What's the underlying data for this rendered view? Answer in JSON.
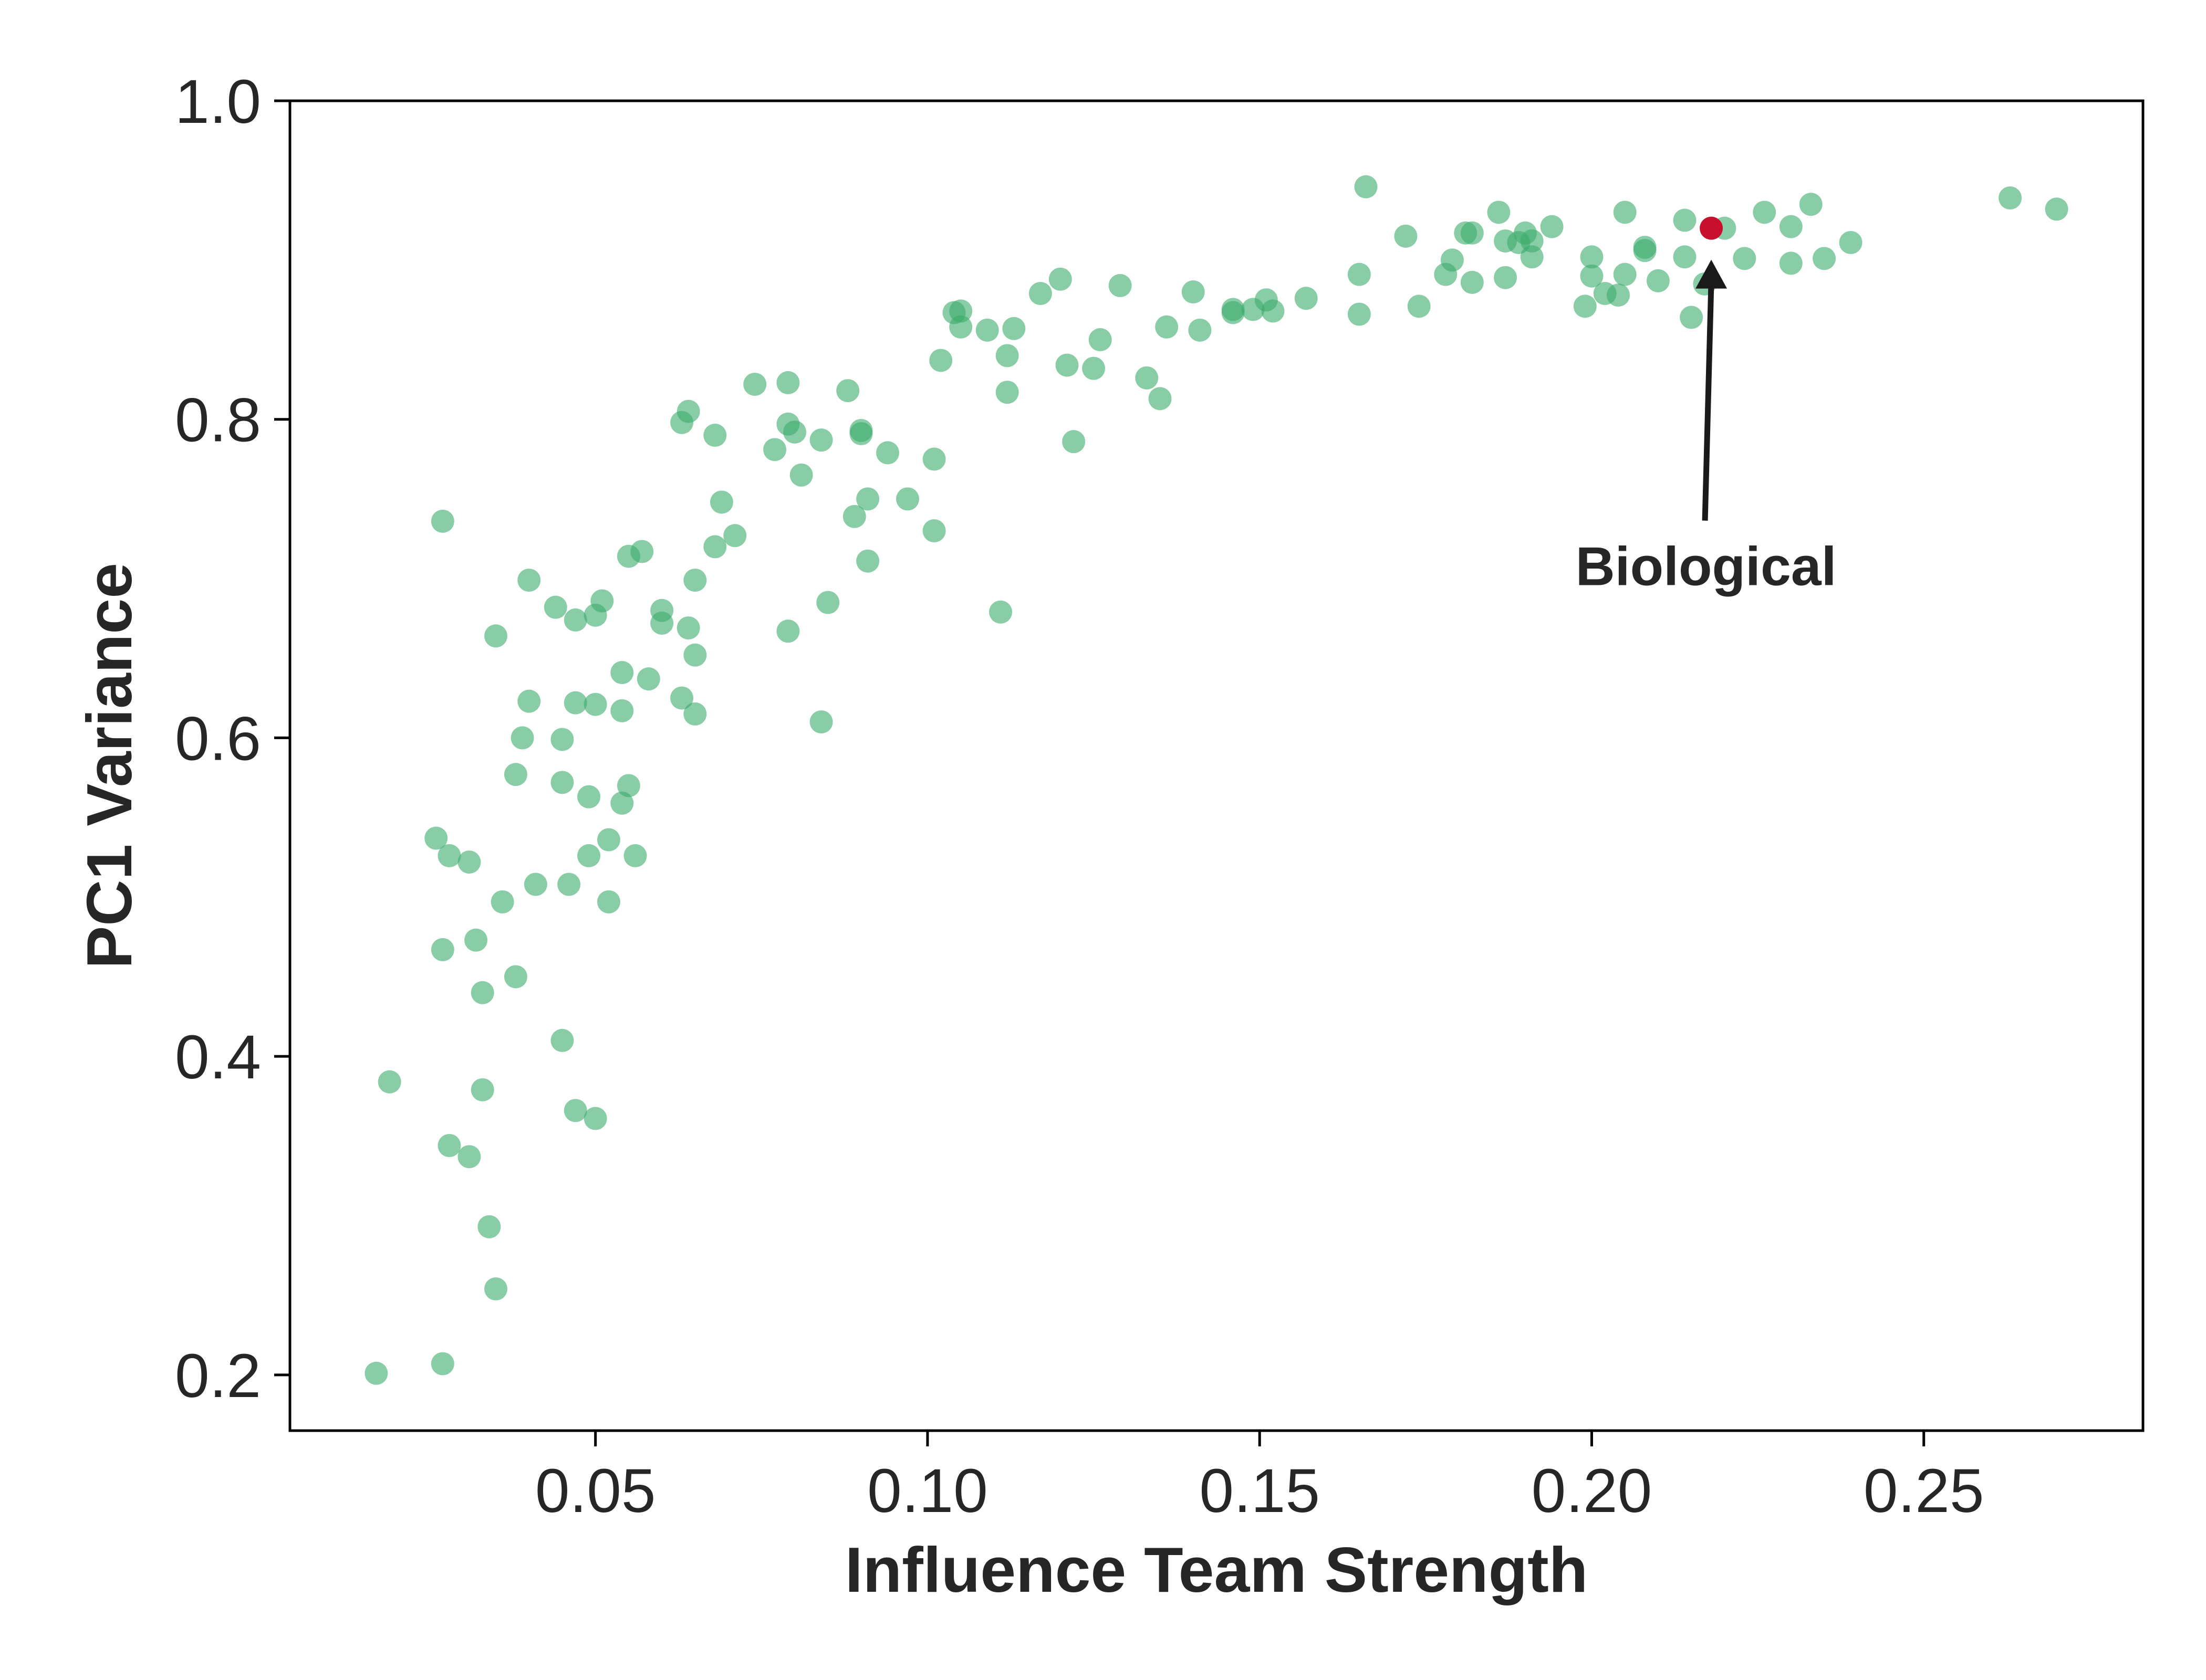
{
  "chart_data": {
    "type": "scatter",
    "title": "",
    "xlabel": "Influence Team Strength",
    "ylabel": "PC1 Variance",
    "xlim": [
      0.004,
      0.283
    ],
    "ylim": [
      0.165,
      1.0
    ],
    "xticks": [
      0.05,
      0.1,
      0.15,
      0.2,
      0.25
    ],
    "xtick_labels": [
      "0.05",
      "0.10",
      "0.15",
      "0.20",
      "0.25"
    ],
    "yticks": [
      0.2,
      0.4,
      0.6,
      0.8,
      1.0
    ],
    "ytick_labels": [
      "0.2",
      "0.4",
      "0.6",
      "0.8",
      "1.0"
    ],
    "grid": false,
    "colors": {
      "points": "#3aab6a",
      "highlight": "#c8102e",
      "axis": "#000000",
      "text": "#262626"
    },
    "series": [
      {
        "points": [
          [
            0.017,
            0.201
          ],
          [
            0.019,
            0.384
          ],
          [
            0.027,
            0.207
          ],
          [
            0.027,
            0.736
          ],
          [
            0.026,
            0.537
          ],
          [
            0.028,
            0.526
          ],
          [
            0.027,
            0.467
          ],
          [
            0.031,
            0.522
          ],
          [
            0.032,
            0.473
          ],
          [
            0.033,
            0.44
          ],
          [
            0.033,
            0.379
          ],
          [
            0.028,
            0.344
          ],
          [
            0.031,
            0.337
          ],
          [
            0.034,
            0.293
          ],
          [
            0.035,
            0.254
          ],
          [
            0.035,
            0.664
          ],
          [
            0.036,
            0.497
          ],
          [
            0.038,
            0.577
          ],
          [
            0.039,
            0.6
          ],
          [
            0.04,
            0.699
          ],
          [
            0.04,
            0.623
          ],
          [
            0.038,
            0.45
          ],
          [
            0.041,
            0.508
          ],
          [
            0.044,
            0.682
          ],
          [
            0.045,
            0.599
          ],
          [
            0.045,
            0.572
          ],
          [
            0.045,
            0.41
          ],
          [
            0.046,
            0.508
          ],
          [
            0.047,
            0.674
          ],
          [
            0.047,
            0.622
          ],
          [
            0.047,
            0.366
          ],
          [
            0.049,
            0.563
          ],
          [
            0.049,
            0.526
          ],
          [
            0.05,
            0.677
          ],
          [
            0.05,
            0.621
          ],
          [
            0.05,
            0.361
          ],
          [
            0.051,
            0.686
          ],
          [
            0.052,
            0.536
          ],
          [
            0.052,
            0.497
          ],
          [
            0.054,
            0.641
          ],
          [
            0.054,
            0.617
          ],
          [
            0.054,
            0.559
          ],
          [
            0.055,
            0.714
          ],
          [
            0.055,
            0.57
          ],
          [
            0.056,
            0.526
          ],
          [
            0.057,
            0.717
          ],
          [
            0.058,
            0.637
          ],
          [
            0.06,
            0.672
          ],
          [
            0.06,
            0.68
          ],
          [
            0.063,
            0.625
          ],
          [
            0.063,
            0.798
          ],
          [
            0.064,
            0.805
          ],
          [
            0.064,
            0.669
          ],
          [
            0.065,
            0.652
          ],
          [
            0.065,
            0.615
          ],
          [
            0.065,
            0.699
          ],
          [
            0.068,
            0.79
          ],
          [
            0.068,
            0.72
          ],
          [
            0.069,
            0.748
          ],
          [
            0.071,
            0.727
          ],
          [
            0.074,
            0.822
          ],
          [
            0.077,
            0.781
          ],
          [
            0.079,
            0.823
          ],
          [
            0.079,
            0.797
          ],
          [
            0.08,
            0.792
          ],
          [
            0.079,
            0.667
          ],
          [
            0.081,
            0.765
          ],
          [
            0.084,
            0.787
          ],
          [
            0.085,
            0.685
          ],
          [
            0.084,
            0.61
          ],
          [
            0.088,
            0.818
          ],
          [
            0.089,
            0.739
          ],
          [
            0.09,
            0.791
          ],
          [
            0.09,
            0.793
          ],
          [
            0.091,
            0.75
          ],
          [
            0.091,
            0.711
          ],
          [
            0.094,
            0.779
          ],
          [
            0.097,
            0.75
          ],
          [
            0.101,
            0.775
          ],
          [
            0.101,
            0.73
          ],
          [
            0.102,
            0.837
          ],
          [
            0.104,
            0.867
          ],
          [
            0.105,
            0.868
          ],
          [
            0.105,
            0.858
          ],
          [
            0.109,
            0.856
          ],
          [
            0.111,
            0.679
          ],
          [
            0.112,
            0.817
          ],
          [
            0.112,
            0.84
          ],
          [
            0.113,
            0.857
          ],
          [
            0.117,
            0.879
          ],
          [
            0.12,
            0.888
          ],
          [
            0.121,
            0.834
          ],
          [
            0.122,
            0.786
          ],
          [
            0.125,
            0.832
          ],
          [
            0.126,
            0.85
          ],
          [
            0.129,
            0.884
          ],
          [
            0.133,
            0.826
          ],
          [
            0.135,
            0.813
          ],
          [
            0.136,
            0.858
          ],
          [
            0.14,
            0.88
          ],
          [
            0.141,
            0.856
          ],
          [
            0.146,
            0.869
          ],
          [
            0.146,
            0.867
          ],
          [
            0.149,
            0.869
          ],
          [
            0.151,
            0.875
          ],
          [
            0.152,
            0.868
          ],
          [
            0.157,
            0.876
          ],
          [
            0.165,
            0.866
          ],
          [
            0.165,
            0.891
          ],
          [
            0.166,
            0.946
          ],
          [
            0.172,
            0.915
          ],
          [
            0.174,
            0.871
          ],
          [
            0.178,
            0.891
          ],
          [
            0.179,
            0.9
          ],
          [
            0.181,
            0.917
          ],
          [
            0.182,
            0.917
          ],
          [
            0.182,
            0.886
          ],
          [
            0.186,
            0.93
          ],
          [
            0.187,
            0.912
          ],
          [
            0.187,
            0.889
          ],
          [
            0.189,
            0.911
          ],
          [
            0.19,
            0.917
          ],
          [
            0.191,
            0.902
          ],
          [
            0.191,
            0.912
          ],
          [
            0.194,
            0.921
          ],
          [
            0.199,
            0.871
          ],
          [
            0.2,
            0.902
          ],
          [
            0.2,
            0.89
          ],
          [
            0.202,
            0.879
          ],
          [
            0.204,
            0.878
          ],
          [
            0.205,
            0.891
          ],
          [
            0.205,
            0.93
          ],
          [
            0.208,
            0.908
          ],
          [
            0.208,
            0.906
          ],
          [
            0.21,
            0.887
          ],
          [
            0.214,
            0.925
          ],
          [
            0.214,
            0.902
          ],
          [
            0.215,
            0.864
          ],
          [
            0.217,
            0.885
          ],
          [
            0.22,
            0.92
          ],
          [
            0.223,
            0.901
          ],
          [
            0.226,
            0.93
          ],
          [
            0.23,
            0.921
          ],
          [
            0.23,
            0.898
          ],
          [
            0.233,
            0.935
          ],
          [
            0.235,
            0.901
          ],
          [
            0.239,
            0.911
          ],
          [
            0.263,
            0.939
          ],
          [
            0.27,
            0.932
          ]
        ]
      }
    ],
    "highlight": {
      "label": "Biological",
      "x": 0.218,
      "y": 0.92
    }
  }
}
